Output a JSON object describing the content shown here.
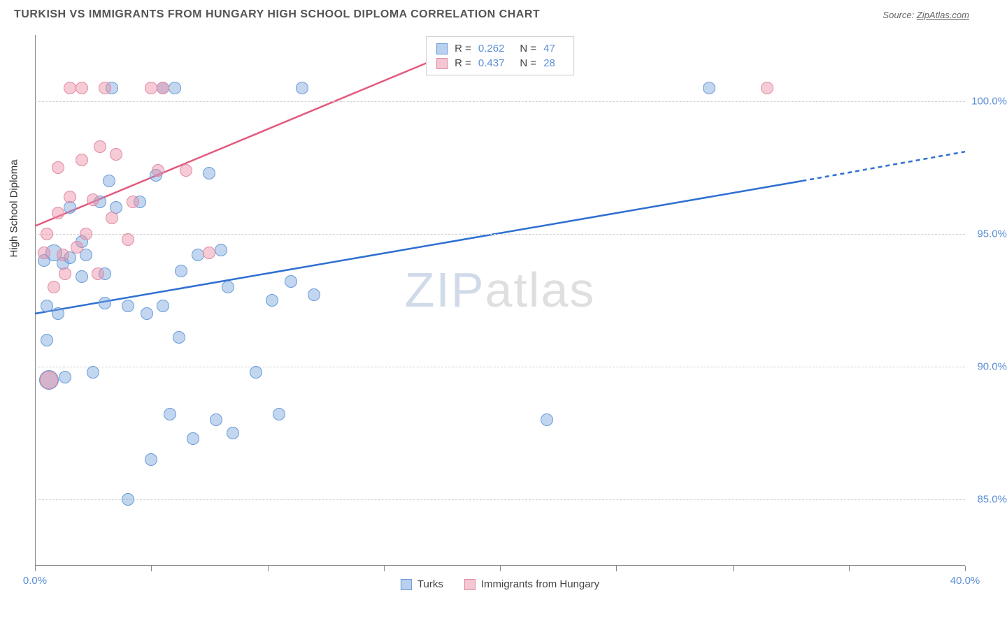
{
  "title": "TURKISH VS IMMIGRANTS FROM HUNGARY HIGH SCHOOL DIPLOMA CORRELATION CHART",
  "source_label": "Source:",
  "source_name": "ZipAtlas.com",
  "y_axis_label": "High School Diploma",
  "watermark_a": "ZIP",
  "watermark_b": "atlas",
  "chart": {
    "type": "scatter",
    "background_color": "#ffffff",
    "grid_color": "#d0d0d0",
    "axis_color": "#888888",
    "x": {
      "min": 0,
      "max": 40,
      "tick_step": 5,
      "unit": "%",
      "labels_shown": [
        {
          "v": 0,
          "t": "0.0%"
        },
        {
          "v": 40,
          "t": "40.0%"
        }
      ]
    },
    "y": {
      "min": 82.5,
      "max": 102.5,
      "gridlines": [
        85,
        90,
        95,
        100
      ],
      "unit": "%",
      "labels": [
        "85.0%",
        "90.0%",
        "95.0%",
        "100.0%"
      ]
    },
    "series": [
      {
        "name": "Turks",
        "color_fill": "rgba(120,165,220,0.45)",
        "color_stroke": "#6a9bd8",
        "swatch_fill": "#b9d0ee",
        "swatch_border": "#6a9bd8",
        "marker_radius": 9,
        "R": "0.262",
        "N": "47",
        "trend": {
          "x1": 0,
          "y1": 92.0,
          "x2": 33,
          "y2": 97.0,
          "x2_dash": 40,
          "y2_dash": 98.1,
          "color": "#2e6fd1",
          "width": 2.5
        },
        "points": [
          {
            "x": 0.5,
            "y": 91.0
          },
          {
            "x": 0.5,
            "y": 92.3
          },
          {
            "x": 0.4,
            "y": 94.0
          },
          {
            "x": 0.8,
            "y": 94.3,
            "r": 12
          },
          {
            "x": 0.6,
            "y": 89.5,
            "r": 14
          },
          {
            "x": 1.3,
            "y": 89.6
          },
          {
            "x": 1.0,
            "y": 92.0
          },
          {
            "x": 1.2,
            "y": 93.9
          },
          {
            "x": 1.5,
            "y": 94.1
          },
          {
            "x": 1.5,
            "y": 96.0
          },
          {
            "x": 2.0,
            "y": 93.4
          },
          {
            "x": 2.0,
            "y": 94.7
          },
          {
            "x": 2.5,
            "y": 89.8
          },
          {
            "x": 2.2,
            "y": 94.2
          },
          {
            "x": 2.8,
            "y": 96.2
          },
          {
            "x": 3.0,
            "y": 92.4
          },
          {
            "x": 3.0,
            "y": 93.5
          },
          {
            "x": 3.2,
            "y": 97.0
          },
          {
            "x": 3.3,
            "y": 100.5
          },
          {
            "x": 3.5,
            "y": 96.0
          },
          {
            "x": 4.0,
            "y": 85.0
          },
          {
            "x": 4.0,
            "y": 92.3
          },
          {
            "x": 4.5,
            "y": 96.2
          },
          {
            "x": 4.8,
            "y": 92.0
          },
          {
            "x": 5.0,
            "y": 86.5
          },
          {
            "x": 5.2,
            "y": 97.2
          },
          {
            "x": 5.5,
            "y": 92.3
          },
          {
            "x": 5.5,
            "y": 100.5
          },
          {
            "x": 5.8,
            "y": 88.2
          },
          {
            "x": 6.2,
            "y": 91.1
          },
          {
            "x": 6.3,
            "y": 93.6
          },
          {
            "x": 6.8,
            "y": 87.3
          },
          {
            "x": 7.0,
            "y": 94.2
          },
          {
            "x": 7.5,
            "y": 97.3
          },
          {
            "x": 7.8,
            "y": 88.0
          },
          {
            "x": 8.0,
            "y": 94.4
          },
          {
            "x": 8.3,
            "y": 93.0
          },
          {
            "x": 8.5,
            "y": 87.5
          },
          {
            "x": 9.5,
            "y": 89.8
          },
          {
            "x": 10.2,
            "y": 92.5
          },
          {
            "x": 10.5,
            "y": 88.2
          },
          {
            "x": 11.0,
            "y": 93.2
          },
          {
            "x": 11.5,
            "y": 100.5
          },
          {
            "x": 12.0,
            "y": 92.7
          },
          {
            "x": 22.0,
            "y": 88.0
          },
          {
            "x": 29.0,
            "y": 100.5
          },
          {
            "x": 6.0,
            "y": 100.5
          }
        ]
      },
      {
        "name": "Immigrants from Hungary",
        "color_fill": "rgba(235,140,165,0.45)",
        "color_stroke": "#e08aa3",
        "swatch_fill": "#f5c7d3",
        "swatch_border": "#e08aa3",
        "marker_radius": 9,
        "R": "0.437",
        "N": "28",
        "trend": {
          "x1": 0,
          "y1": 95.3,
          "x2": 17,
          "y2": 101.5,
          "color": "#e35a7e",
          "width": 2.5
        },
        "points": [
          {
            "x": 0.4,
            "y": 94.3
          },
          {
            "x": 0.5,
            "y": 95.0
          },
          {
            "x": 0.6,
            "y": 89.5,
            "r": 13
          },
          {
            "x": 0.8,
            "y": 93.0
          },
          {
            "x": 1.0,
            "y": 95.8
          },
          {
            "x": 1.0,
            "y": 97.5
          },
          {
            "x": 1.2,
            "y": 94.2
          },
          {
            "x": 1.3,
            "y": 93.5
          },
          {
            "x": 1.5,
            "y": 96.4
          },
          {
            "x": 1.5,
            "y": 100.5
          },
          {
            "x": 1.8,
            "y": 94.5
          },
          {
            "x": 2.0,
            "y": 97.8
          },
          {
            "x": 2.0,
            "y": 100.5
          },
          {
            "x": 2.2,
            "y": 95.0
          },
          {
            "x": 2.5,
            "y": 96.3
          },
          {
            "x": 2.7,
            "y": 93.5
          },
          {
            "x": 2.8,
            "y": 98.3
          },
          {
            "x": 3.0,
            "y": 100.5
          },
          {
            "x": 3.3,
            "y": 95.6
          },
          {
            "x": 3.5,
            "y": 98.0
          },
          {
            "x": 4.0,
            "y": 94.8
          },
          {
            "x": 4.2,
            "y": 96.2
          },
          {
            "x": 5.0,
            "y": 100.5
          },
          {
            "x": 5.3,
            "y": 97.4
          },
          {
            "x": 5.5,
            "y": 100.5
          },
          {
            "x": 6.5,
            "y": 97.4
          },
          {
            "x": 7.5,
            "y": 94.3
          },
          {
            "x": 31.5,
            "y": 100.5
          }
        ]
      }
    ]
  }
}
